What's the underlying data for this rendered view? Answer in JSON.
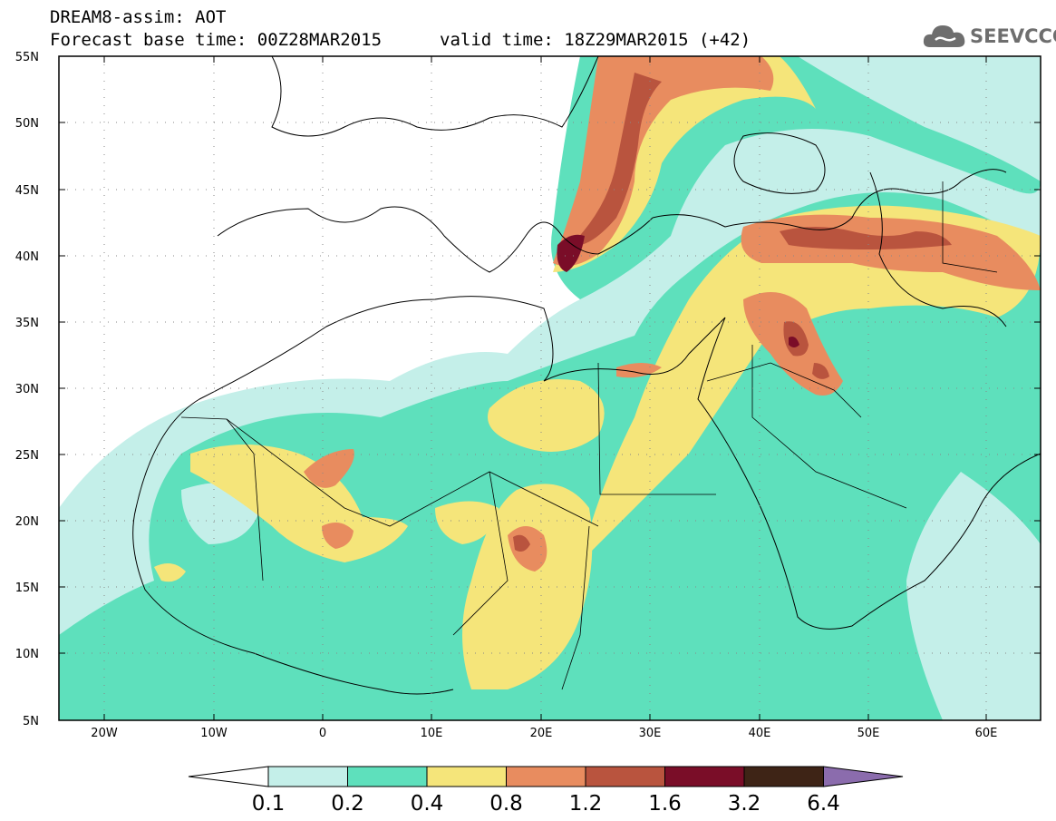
{
  "title": {
    "line1": "DREAM8-assim: AOT",
    "line2_left": "Forecast base time: 00Z28MAR2015",
    "line2_right": "valid time: 18Z29MAR2015 (+42)"
  },
  "logo": {
    "text": "SEEVCCC",
    "icon": "cloud-icon"
  },
  "map": {
    "lat_labels": [
      "55N",
      "50N",
      "45N",
      "40N",
      "35N",
      "30N",
      "25N",
      "20N",
      "15N",
      "10N",
      "5N"
    ],
    "lon_labels": [
      "20W",
      "10W",
      "0",
      "10E",
      "20E",
      "30E",
      "40E",
      "50E",
      "60E"
    ],
    "lat_range": [
      5,
      55
    ],
    "lon_range": [
      -25,
      65
    ],
    "grid": "dotted"
  },
  "colorbar": {
    "labels": [
      "0.1",
      "0.2",
      "0.4",
      "0.8",
      "1.2",
      "1.6",
      "3.2",
      "6.4"
    ],
    "colors": [
      "#ffffff",
      "#c4efe9",
      "#5ee0bc",
      "#f5e57a",
      "#e88c5f",
      "#b9543e",
      "#7a0d28",
      "#3e2416",
      "#8b6cad"
    ]
  }
}
